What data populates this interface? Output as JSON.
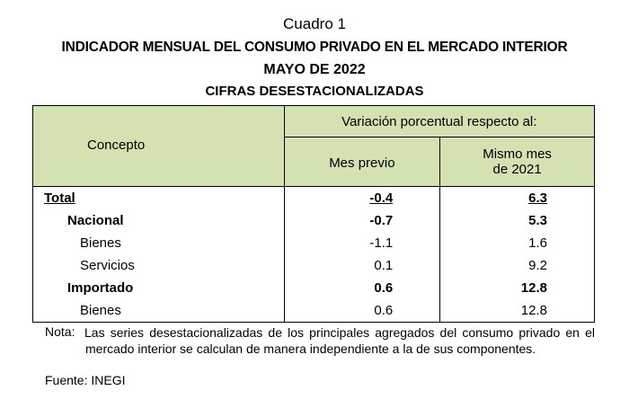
{
  "header": {
    "label": "Cuadro 1",
    "title": "INDICADOR MENSUAL DEL CONSUMO PRIVADO EN EL MERCADO INTERIOR",
    "period": "MAYO DE 2022",
    "subtitle": "CIFRAS DESESTACIONALIZADAS"
  },
  "table": {
    "columns": {
      "concept": "Concepto",
      "group": "Variación porcentual respecto al:",
      "col1": "Mes previo",
      "col2": "Mismo mes de 2021"
    },
    "rows": [
      [
        "Total",
        -0.4,
        6.3
      ],
      [
        "Nacional",
        -0.7,
        5.3
      ],
      [
        "Bienes",
        -1.1,
        1.6
      ],
      [
        "Servicios",
        0.1,
        9.2
      ],
      [
        "Importado",
        0.6,
        12.8
      ],
      [
        "Bienes",
        0.6,
        12.8
      ]
    ]
  },
  "footer": {
    "note_label": "Nota:",
    "note": "Las series desestacionalizadas de los principales agregados del consumo privado en el mercado interior se calculan de manera independiente a la de sus componentes.",
    "source": "Fuente: INEGI"
  }
}
